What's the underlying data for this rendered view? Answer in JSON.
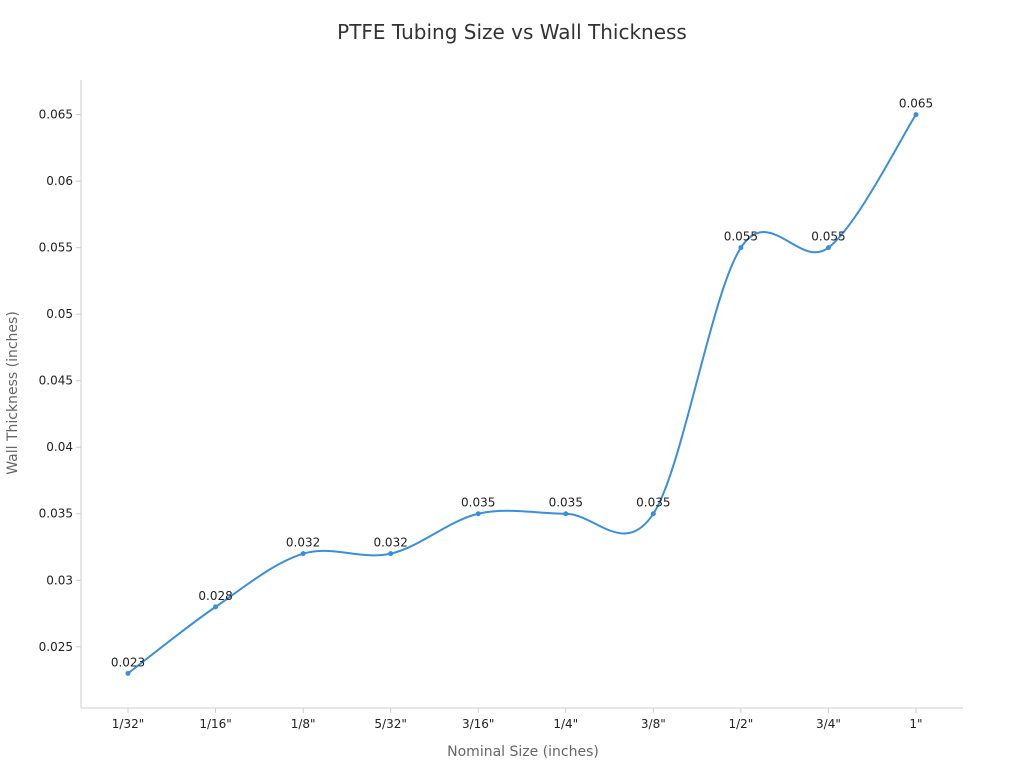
{
  "chart_data": {
    "type": "line",
    "title": "PTFE Tubing Size vs Wall Thickness",
    "xlabel": "Nominal Size (inches)",
    "ylabel": "Wall Thickness (inches)",
    "categories": [
      "1/32\"",
      "1/16\"",
      "1/8\"",
      "5/32\"",
      "3/16\"",
      "1/4\"",
      "3/8\"",
      "1/2\"",
      "3/4\"",
      "1\""
    ],
    "series": [
      {
        "values": [
          0.023,
          0.028,
          0.032,
          0.032,
          0.035,
          0.035,
          0.035,
          0.055,
          0.055,
          0.065
        ],
        "data_labels": [
          "0.023",
          "0.028",
          "0.032",
          "0.032",
          "0.035",
          "0.035",
          "0.035",
          "0.055",
          "0.055",
          "0.065"
        ]
      }
    ],
    "yticks": [
      0.025,
      0.03,
      0.035,
      0.04,
      0.045,
      0.05,
      0.055,
      0.06,
      0.065
    ],
    "ytick_labels": [
      "0.025",
      "0.03",
      "0.035",
      "0.04",
      "0.045",
      "0.05",
      "0.055",
      "0.06",
      "0.065"
    ],
    "ylim": [
      0.0204,
      0.0676
    ],
    "smooth": true,
    "grid": false,
    "legend": "none",
    "line_color": "#3b8fd9",
    "axis_color": "#cccccc"
  }
}
